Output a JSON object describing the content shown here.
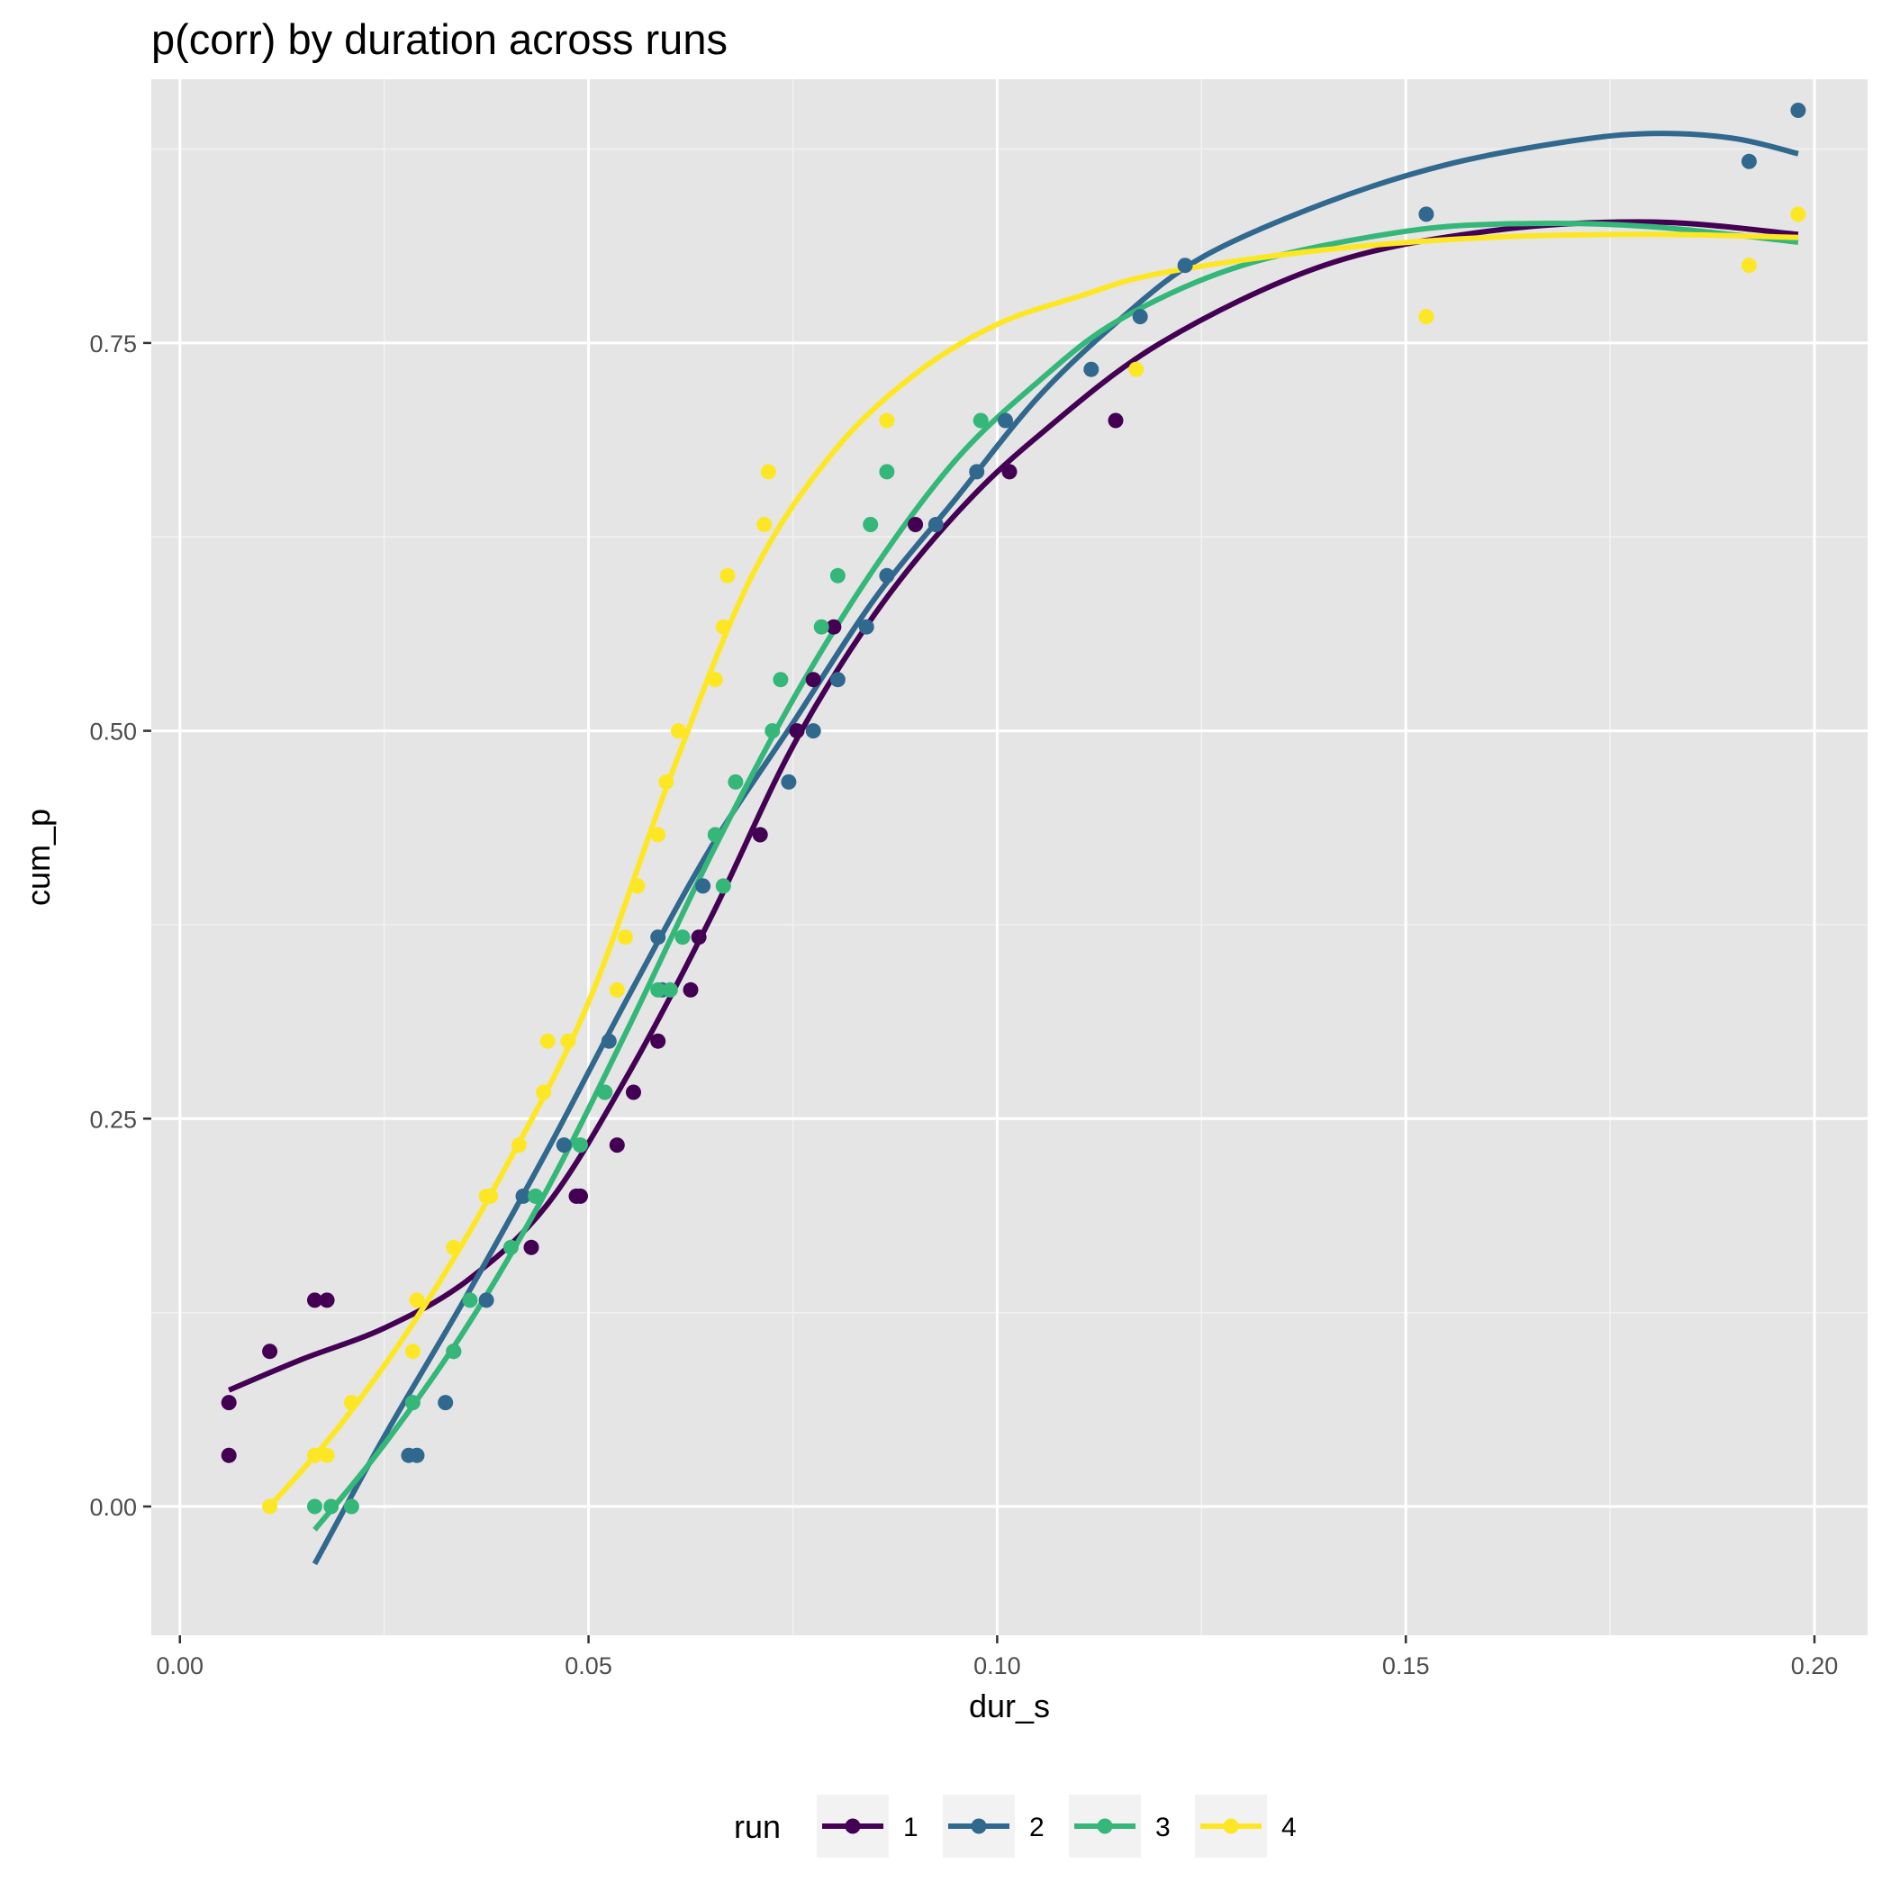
{
  "chart_data": {
    "type": "scatter",
    "title": "p(corr) by duration across runs",
    "xlabel": "dur_s",
    "ylabel": "cum_p",
    "xlim": [
      -0.0035,
      0.2065
    ],
    "ylim": [
      -0.083,
      0.92
    ],
    "x_ticks": [
      0.0,
      0.05,
      0.1,
      0.15,
      0.2
    ],
    "x_tick_labels": [
      "0.00",
      "0.05",
      "0.10",
      "0.15",
      "0.20"
    ],
    "y_ticks": [
      0.0,
      0.25,
      0.5,
      0.75
    ],
    "y_tick_labels": [
      "0.00",
      "0.25",
      "0.50",
      "0.75"
    ],
    "grid": true,
    "legend": {
      "title": "run",
      "placement": "bottom"
    },
    "series": [
      {
        "name": "1",
        "color": "#440154",
        "points": [
          [
            0.006,
            0.033
          ],
          [
            0.006,
            0.067
          ],
          [
            0.011,
            0.1
          ],
          [
            0.0165,
            0.133
          ],
          [
            0.018,
            0.133
          ],
          [
            0.043,
            0.167
          ],
          [
            0.0485,
            0.2
          ],
          [
            0.049,
            0.2
          ],
          [
            0.0535,
            0.233
          ],
          [
            0.0555,
            0.267
          ],
          [
            0.0585,
            0.3
          ],
          [
            0.0625,
            0.333
          ],
          [
            0.0635,
            0.367
          ],
          [
            0.071,
            0.433
          ],
          [
            0.0755,
            0.5
          ],
          [
            0.0775,
            0.533
          ],
          [
            0.08,
            0.567
          ],
          [
            0.09,
            0.633
          ],
          [
            0.1015,
            0.667
          ],
          [
            0.1145,
            0.7
          ]
        ],
        "fit": [
          [
            0.006,
            0.075
          ],
          [
            0.015,
            0.095
          ],
          [
            0.025,
            0.115
          ],
          [
            0.035,
            0.145
          ],
          [
            0.045,
            0.195
          ],
          [
            0.055,
            0.28
          ],
          [
            0.065,
            0.38
          ],
          [
            0.075,
            0.49
          ],
          [
            0.085,
            0.575
          ],
          [
            0.095,
            0.64
          ],
          [
            0.105,
            0.69
          ],
          [
            0.12,
            0.75
          ],
          [
            0.14,
            0.8
          ],
          [
            0.16,
            0.822
          ],
          [
            0.18,
            0.828
          ],
          [
            0.198,
            0.82
          ]
        ]
      },
      {
        "name": "2",
        "color": "#31688e",
        "points": [
          [
            0.028,
            0.033
          ],
          [
            0.029,
            0.033
          ],
          [
            0.0325,
            0.067
          ],
          [
            0.0335,
            0.1
          ],
          [
            0.0375,
            0.133
          ],
          [
            0.042,
            0.2
          ],
          [
            0.047,
            0.233
          ],
          [
            0.052,
            0.267
          ],
          [
            0.0525,
            0.3
          ],
          [
            0.059,
            0.333
          ],
          [
            0.0585,
            0.367
          ],
          [
            0.064,
            0.4
          ],
          [
            0.0745,
            0.467
          ],
          [
            0.0775,
            0.5
          ],
          [
            0.0805,
            0.533
          ],
          [
            0.084,
            0.567
          ],
          [
            0.0865,
            0.6
          ],
          [
            0.0925,
            0.633
          ],
          [
            0.0975,
            0.667
          ],
          [
            0.101,
            0.7
          ],
          [
            0.1115,
            0.733
          ],
          [
            0.1175,
            0.767
          ],
          [
            0.123,
            0.8
          ],
          [
            0.1525,
            0.833
          ],
          [
            0.192,
            0.867
          ],
          [
            0.198,
            0.9
          ]
        ],
        "fit": [
          [
            0.0165,
            -0.037
          ],
          [
            0.025,
            0.045
          ],
          [
            0.035,
            0.135
          ],
          [
            0.045,
            0.23
          ],
          [
            0.055,
            0.33
          ],
          [
            0.065,
            0.425
          ],
          [
            0.075,
            0.505
          ],
          [
            0.085,
            0.585
          ],
          [
            0.095,
            0.65
          ],
          [
            0.105,
            0.715
          ],
          [
            0.115,
            0.765
          ],
          [
            0.125,
            0.805
          ],
          [
            0.14,
            0.84
          ],
          [
            0.155,
            0.865
          ],
          [
            0.17,
            0.88
          ],
          [
            0.18,
            0.885
          ],
          [
            0.19,
            0.882
          ],
          [
            0.198,
            0.872
          ]
        ]
      },
      {
        "name": "3",
        "color": "#35b779",
        "points": [
          [
            0.0165,
            0.0
          ],
          [
            0.0185,
            0.0
          ],
          [
            0.021,
            0.0
          ],
          [
            0.0285,
            0.067
          ],
          [
            0.0335,
            0.1
          ],
          [
            0.0355,
            0.133
          ],
          [
            0.0405,
            0.167
          ],
          [
            0.0435,
            0.2
          ],
          [
            0.049,
            0.233
          ],
          [
            0.052,
            0.267
          ],
          [
            0.0585,
            0.333
          ],
          [
            0.06,
            0.333
          ],
          [
            0.0615,
            0.367
          ],
          [
            0.0665,
            0.4
          ],
          [
            0.0655,
            0.433
          ],
          [
            0.068,
            0.467
          ],
          [
            0.0725,
            0.5
          ],
          [
            0.0735,
            0.533
          ],
          [
            0.0785,
            0.567
          ],
          [
            0.0805,
            0.6
          ],
          [
            0.0845,
            0.633
          ],
          [
            0.0865,
            0.667
          ],
          [
            0.098,
            0.7
          ]
        ],
        "fit": [
          [
            0.0165,
            -0.015
          ],
          [
            0.025,
            0.04
          ],
          [
            0.035,
            0.115
          ],
          [
            0.045,
            0.205
          ],
          [
            0.055,
            0.31
          ],
          [
            0.065,
            0.42
          ],
          [
            0.075,
            0.52
          ],
          [
            0.085,
            0.605
          ],
          [
            0.095,
            0.675
          ],
          [
            0.105,
            0.725
          ],
          [
            0.115,
            0.765
          ],
          [
            0.13,
            0.8
          ],
          [
            0.15,
            0.822
          ],
          [
            0.165,
            0.827
          ],
          [
            0.18,
            0.825
          ],
          [
            0.198,
            0.815
          ]
        ]
      },
      {
        "name": "4",
        "color": "#fde725",
        "points": [
          [
            0.011,
            0.0
          ],
          [
            0.0165,
            0.033
          ],
          [
            0.018,
            0.033
          ],
          [
            0.021,
            0.067
          ],
          [
            0.0285,
            0.1
          ],
          [
            0.029,
            0.133
          ],
          [
            0.0335,
            0.167
          ],
          [
            0.0375,
            0.2
          ],
          [
            0.038,
            0.2
          ],
          [
            0.0415,
            0.233
          ],
          [
            0.0445,
            0.267
          ],
          [
            0.045,
            0.3
          ],
          [
            0.0475,
            0.3
          ],
          [
            0.0535,
            0.333
          ],
          [
            0.0545,
            0.367
          ],
          [
            0.056,
            0.4
          ],
          [
            0.0585,
            0.433
          ],
          [
            0.0595,
            0.467
          ],
          [
            0.061,
            0.5
          ],
          [
            0.0655,
            0.533
          ],
          [
            0.0665,
            0.567
          ],
          [
            0.067,
            0.6
          ],
          [
            0.0715,
            0.633
          ],
          [
            0.072,
            0.667
          ],
          [
            0.0865,
            0.7
          ],
          [
            0.117,
            0.733
          ],
          [
            0.1525,
            0.767
          ],
          [
            0.192,
            0.8
          ],
          [
            0.198,
            0.833
          ]
        ],
        "fit": [
          [
            0.011,
            0.0
          ],
          [
            0.02,
            0.055
          ],
          [
            0.03,
            0.13
          ],
          [
            0.04,
            0.22
          ],
          [
            0.05,
            0.325
          ],
          [
            0.06,
            0.47
          ],
          [
            0.07,
            0.6
          ],
          [
            0.08,
            0.68
          ],
          [
            0.09,
            0.73
          ],
          [
            0.1,
            0.762
          ],
          [
            0.11,
            0.78
          ],
          [
            0.12,
            0.795
          ],
          [
            0.14,
            0.81
          ],
          [
            0.16,
            0.818
          ],
          [
            0.18,
            0.82
          ],
          [
            0.198,
            0.818
          ]
        ]
      }
    ]
  }
}
